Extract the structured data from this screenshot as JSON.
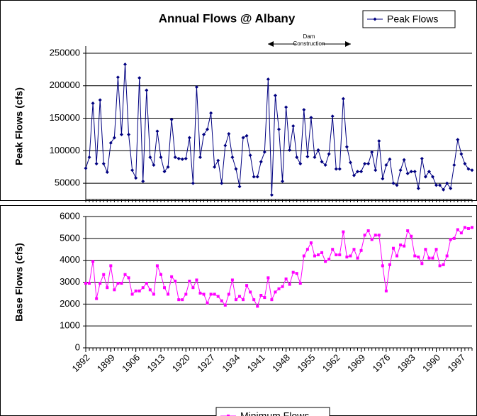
{
  "chart_data": [
    {
      "type": "line",
      "title": "Annual Flows @ Albany",
      "ylabel": "Peak Flows (cfs)",
      "annotation": [
        "Dam",
        "Construction"
      ],
      "x": [
        1892,
        1893,
        1894,
        1895,
        1896,
        1897,
        1898,
        1899,
        1900,
        1901,
        1902,
        1903,
        1904,
        1905,
        1906,
        1907,
        1908,
        1909,
        1910,
        1911,
        1912,
        1913,
        1914,
        1915,
        1916,
        1917,
        1918,
        1919,
        1920,
        1921,
        1922,
        1923,
        1924,
        1925,
        1926,
        1927,
        1928,
        1929,
        1930,
        1931,
        1932,
        1933,
        1934,
        1935,
        1936,
        1937,
        1938,
        1939,
        1940,
        1941,
        1942,
        1943,
        1944,
        1945,
        1946,
        1947,
        1948,
        1949,
        1950,
        1951,
        1952,
        1953,
        1954,
        1955,
        1956,
        1957,
        1958,
        1959,
        1960,
        1961,
        1962,
        1963,
        1964,
        1965,
        1966,
        1967,
        1968,
        1969,
        1970,
        1971,
        1972,
        1973,
        1974,
        1975,
        1976,
        1977,
        1978,
        1979,
        1980,
        1981,
        1982,
        1983,
        1984,
        1985,
        1986,
        1987,
        1988,
        1989,
        1990,
        1991,
        1992,
        1993,
        1994,
        1995,
        1996,
        1997,
        1998,
        1999,
        2000
      ],
      "series": [
        {
          "name": "Peak Flows",
          "color": "#000080",
          "values": [
            73000,
            90000,
            173000,
            80000,
            178000,
            80000,
            67000,
            112000,
            120000,
            213000,
            125000,
            233000,
            125000,
            70000,
            58000,
            212000,
            53000,
            193000,
            90000,
            78000,
            130000,
            90000,
            68000,
            75000,
            148000,
            90000,
            88000,
            87000,
            88000,
            120000,
            50000,
            198000,
            90000,
            125000,
            133000,
            158000,
            75000,
            85000,
            50000,
            108000,
            126000,
            90000,
            72000,
            45000,
            120000,
            123000,
            93000,
            60000,
            60000,
            83000,
            98000,
            210000,
            32000,
            185000,
            133000,
            53000,
            167000,
            101000,
            138000,
            90000,
            80000,
            163000,
            91000,
            151000,
            90000,
            101000,
            83000,
            78000,
            95000,
            153000,
            72000,
            72000,
            180000,
            106000,
            82000,
            62000,
            68000,
            68000,
            80000,
            80000,
            98000,
            70000,
            115000,
            57000,
            78000,
            87000,
            50000,
            47000,
            70000,
            86000,
            65000,
            68000,
            68000,
            42000,
            88000,
            60000,
            68000,
            60000,
            47000,
            47000,
            40000,
            50000,
            42000,
            78000,
            117000,
            95000,
            80000,
            72000,
            70000
          ]
        }
      ],
      "xlim": [
        1892,
        2000
      ],
      "ylim": [
        25000,
        250000
      ],
      "yticks": [
        50000,
        100000,
        150000,
        200000,
        250000
      ],
      "grid": true,
      "legend": "top-right"
    },
    {
      "type": "line",
      "ylabel": "Base Flows (cfs)",
      "x": [
        1892,
        1893,
        1894,
        1895,
        1896,
        1897,
        1898,
        1899,
        1900,
        1901,
        1902,
        1903,
        1904,
        1905,
        1906,
        1907,
        1908,
        1909,
        1910,
        1911,
        1912,
        1913,
        1914,
        1915,
        1916,
        1917,
        1918,
        1919,
        1920,
        1921,
        1922,
        1923,
        1924,
        1925,
        1926,
        1927,
        1928,
        1929,
        1930,
        1931,
        1932,
        1933,
        1934,
        1935,
        1936,
        1937,
        1938,
        1939,
        1940,
        1941,
        1942,
        1943,
        1944,
        1945,
        1946,
        1947,
        1948,
        1949,
        1950,
        1951,
        1952,
        1953,
        1954,
        1955,
        1956,
        1957,
        1958,
        1959,
        1960,
        1961,
        1962,
        1963,
        1964,
        1965,
        1966,
        1967,
        1968,
        1969,
        1970,
        1971,
        1972,
        1973,
        1974,
        1975,
        1976,
        1977,
        1978,
        1979,
        1980,
        1981,
        1982,
        1983,
        1984,
        1985,
        1986,
        1987,
        1988,
        1989,
        1990,
        1991,
        1992,
        1993,
        1994,
        1995,
        1996,
        1997,
        1998,
        1999,
        2000
      ],
      "series": [
        {
          "name": "Minimum Flows",
          "color": "#ff00ff",
          "values": [
            2950,
            2950,
            3950,
            2250,
            2950,
            3350,
            2750,
            3750,
            2650,
            2950,
            2950,
            3350,
            3200,
            2450,
            2600,
            2600,
            2750,
            2950,
            2650,
            2450,
            3750,
            3350,
            2750,
            2450,
            3250,
            3050,
            2200,
            2200,
            2450,
            3050,
            2750,
            3100,
            2500,
            2450,
            2050,
            2450,
            2450,
            2350,
            2150,
            1950,
            2450,
            3100,
            2200,
            2350,
            2200,
            2850,
            2550,
            2200,
            1900,
            2400,
            2300,
            3200,
            2200,
            2550,
            2700,
            2800,
            3150,
            2900,
            3450,
            3400,
            2950,
            4200,
            4500,
            4800,
            4200,
            4250,
            4350,
            3950,
            4050,
            4500,
            4250,
            4250,
            5300,
            4150,
            4200,
            4500,
            4100,
            4450,
            5150,
            5350,
            4950,
            5150,
            5150,
            3750,
            2600,
            3800,
            4550,
            4200,
            4700,
            4650,
            5350,
            5100,
            4200,
            4150,
            3850,
            4500,
            4100,
            4100,
            4500,
            3750,
            3800,
            4200,
            4950,
            5000,
            5400,
            5250,
            5500,
            5450,
            5500
          ]
        }
      ],
      "xlim": [
        1892,
        2000
      ],
      "xticks": [
        1892,
        1899,
        1906,
        1913,
        1920,
        1927,
        1934,
        1941,
        1948,
        1955,
        1962,
        1969,
        1976,
        1983,
        1990,
        1997
      ],
      "ylim": [
        0,
        6000
      ],
      "yticks": [
        0,
        1000,
        2000,
        3000,
        4000,
        5000,
        6000
      ],
      "grid": true,
      "legend": "bottom"
    }
  ]
}
